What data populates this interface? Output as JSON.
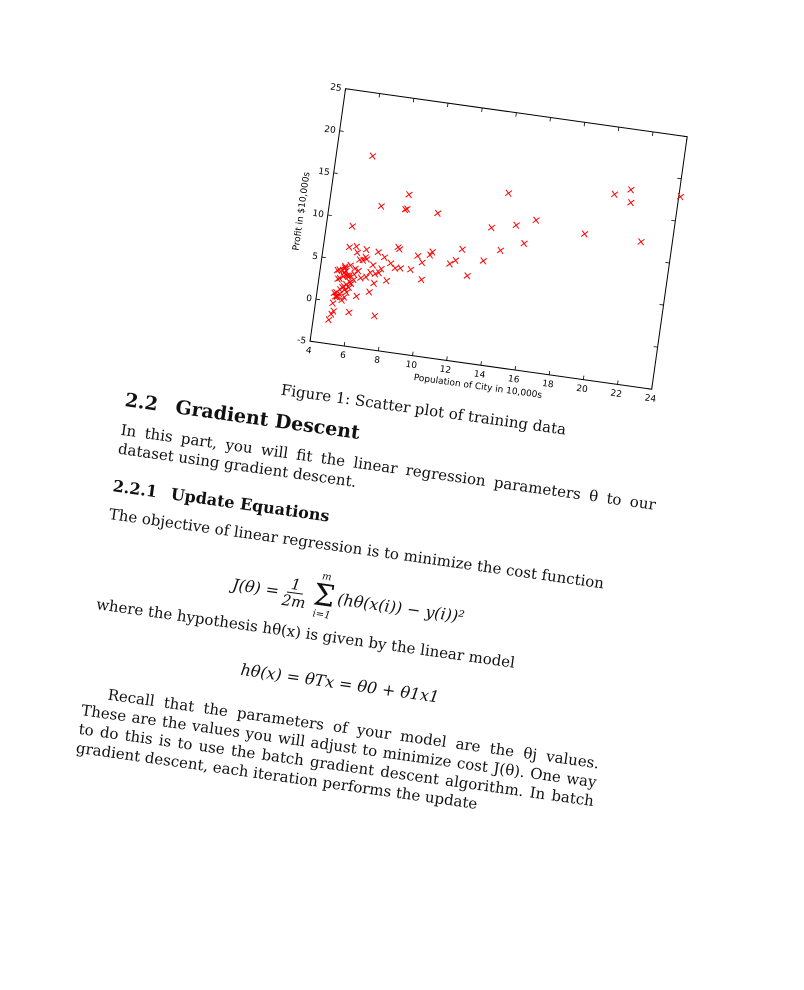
{
  "chart_data": {
    "type": "scatter",
    "xlabel": "Population of City in 10,000s",
    "ylabel": "Profit in $10,000s",
    "xlim": [
      4,
      24
    ],
    "ylim": [
      -5,
      25
    ],
    "xticks": [
      "4",
      "6",
      "8",
      "10",
      "12",
      "14",
      "16",
      "18",
      "20",
      "22",
      "24"
    ],
    "yticks": [
      "-5",
      "0",
      "5",
      "10",
      "15",
      "20",
      "25"
    ],
    "marker_color": "#ff0000",
    "marker": "x",
    "grid": false,
    "points": [
      [
        6.1,
        17.6
      ],
      [
        5.5,
        9.1
      ],
      [
        8.5,
        13.7
      ],
      [
        7.0,
        11.9
      ],
      [
        5.9,
        6.8
      ],
      [
        8.4,
        11.9
      ],
      [
        5.6,
        3.3
      ],
      [
        8.5,
        12.0
      ],
      [
        6.5,
        6.6
      ],
      [
        5.1,
        3.8
      ],
      [
        5.7,
        3.3
      ],
      [
        14.2,
        15.5
      ],
      [
        5.7,
        3.1
      ],
      [
        8.4,
        7.2
      ],
      [
        5.6,
        0.7
      ],
      [
        5.4,
        3.5
      ],
      [
        6.4,
        5.3
      ],
      [
        5.1,
        0.6
      ],
      [
        5.0,
        3.7
      ],
      [
        5.4,
        4.3
      ],
      [
        6.2,
        4.0
      ],
      [
        5.9,
        2.4
      ],
      [
        6.0,
        2.9
      ],
      [
        7.2,
        6.5
      ],
      [
        5.1,
        -1.1
      ],
      [
        5.3,
        1.5
      ],
      [
        8.3,
        7.4
      ],
      [
        5.5,
        3.8
      ],
      [
        6.2,
        5.3
      ],
      [
        7.0,
        4.9
      ],
      [
        5.6,
        1.6
      ],
      [
        5.1,
        2.7
      ],
      [
        7.5,
        4.6
      ],
      [
        5.2,
        0.6
      ],
      [
        6.4,
        3.2
      ],
      [
        5.7,
        1.3
      ],
      [
        5.5,
        1.9
      ],
      [
        5.1,
        1.1
      ],
      [
        5.3,
        3.8
      ],
      [
        5.0,
        -0.2
      ],
      [
        6.5,
        5.7
      ],
      [
        5.4,
        4.1
      ],
      [
        5.2,
        2.8
      ],
      [
        6.0,
        3.5
      ],
      [
        5.8,
        2.5
      ],
      [
        6.9,
        4.0
      ],
      [
        5.3,
        1.0
      ],
      [
        5.4,
        1.8
      ],
      [
        7.2,
        3.9
      ],
      [
        5.5,
        0.3
      ],
      [
        5.0,
        1.0
      ],
      [
        8.0,
        5.4
      ],
      [
        6.0,
        4.2
      ],
      [
        9.5,
        6.7
      ],
      [
        7.4,
        4.1
      ],
      [
        5.8,
        1.9
      ],
      [
        5.4,
        3.1
      ],
      [
        5.7,
        4.5
      ],
      [
        6.6,
        5.5
      ],
      [
        10.2,
        7.0
      ],
      [
        6.7,
        3.4
      ],
      [
        7.6,
        6.0
      ],
      [
        6.0,
        6.1
      ],
      [
        5.5,
        6.6
      ],
      [
        10.3,
        12.0
      ],
      [
        20.3,
        17.1
      ],
      [
        21.3,
        16.4
      ],
      [
        21.2,
        17.9
      ],
      [
        22.2,
        12.0
      ],
      [
        18.9,
        12.0
      ],
      [
        24.1,
        17.9
      ],
      [
        14.9,
        11.9
      ],
      [
        16.0,
        12.8
      ],
      [
        13.5,
        11.2
      ],
      [
        15.5,
        9.9
      ],
      [
        14.2,
        8.7
      ],
      [
        12.0,
        8.2
      ],
      [
        13.3,
        7.2
      ],
      [
        12.5,
        5.2
      ],
      [
        11.7,
        6.8
      ],
      [
        10.3,
        7.4
      ],
      [
        11.4,
        6.3
      ],
      [
        9.2,
        5.0
      ],
      [
        8.6,
        5.0
      ],
      [
        9.8,
        6.0
      ],
      [
        8.3,
        4.9
      ],
      [
        7.9,
        3.3
      ],
      [
        7.2,
        2.8
      ],
      [
        6.3,
        1.0
      ],
      [
        7.0,
        1.7
      ],
      [
        6.0,
        -1.0
      ],
      [
        5.0,
        -1.5
      ],
      [
        7.5,
        -1.0
      ],
      [
        5.6,
        2.2
      ],
      [
        5.2,
        0.7
      ],
      [
        4.9,
        -2.2
      ],
      [
        9.9,
        4.0
      ]
    ]
  },
  "caption": "Figure 1: Scatter plot of training data",
  "section": {
    "number": "2.2",
    "title": "Gradient Descent"
  },
  "para1": "In this part, you will fit the linear regression parameters θ to our dataset using gradient descent.",
  "subsection": {
    "number": "2.2.1",
    "title": "Update Equations"
  },
  "para2": "The objective of linear regression is to minimize the cost function",
  "eq1": {
    "lhs": "J(θ) =",
    "frac_num": "1",
    "frac_den": "2m",
    "sum_top": "m",
    "sum_bottom": "i=1",
    "body": "(hθ(x(i)) − y(i))²"
  },
  "para3": "where the hypothesis hθ(x) is given by the linear model",
  "eq2": "hθ(x) = θTx = θ0 + θ1x1",
  "para4": "Recall that the parameters of your model are the θj values. These are the values you will adjust to minimize cost J(θ). One way to do this is to use the batch gradient descent algorithm. In batch gradient descent, each iteration performs the update"
}
